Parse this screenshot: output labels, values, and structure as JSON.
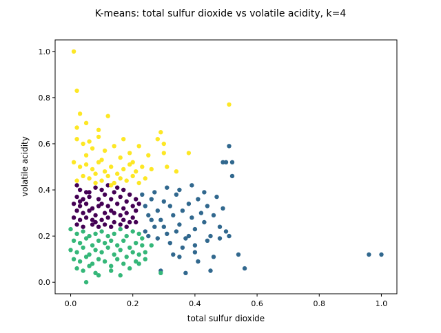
{
  "chart_data": {
    "type": "scatter",
    "title": "K-means: total sulfur dioxide vs volatile acidity, k=4",
    "xlabel": "total sulfur dioxide",
    "ylabel": "volatile acidity",
    "xlim": [
      -0.05,
      1.05
    ],
    "ylim": [
      -0.05,
      1.05
    ],
    "xticks": [
      0.0,
      0.2,
      0.4,
      0.6,
      0.8,
      1.0
    ],
    "xtick_labels": [
      "0.0",
      "0.2",
      "0.4",
      "0.6",
      "0.8",
      "1.0"
    ],
    "yticks": [
      0.0,
      0.2,
      0.4,
      0.6,
      0.8,
      1.0
    ],
    "ytick_labels": [
      "0.0",
      "0.2",
      "0.4",
      "0.6",
      "0.8",
      "1.0"
    ],
    "grid": false,
    "legend": "none",
    "series": [
      {
        "color": "#440154",
        "points": [
          [
            0.02,
            0.42
          ],
          [
            0.03,
            0.4
          ],
          [
            0.05,
            0.39
          ],
          [
            0.08,
            0.41
          ],
          [
            0.1,
            0.4
          ],
          [
            0.12,
            0.42
          ],
          [
            0.14,
            0.39
          ],
          [
            0.17,
            0.4
          ],
          [
            0.19,
            0.38
          ],
          [
            0.02,
            0.37
          ],
          [
            0.04,
            0.36
          ],
          [
            0.06,
            0.37
          ],
          [
            0.09,
            0.36
          ],
          [
            0.11,
            0.38
          ],
          [
            0.13,
            0.36
          ],
          [
            0.16,
            0.37
          ],
          [
            0.18,
            0.35
          ],
          [
            0.21,
            0.36
          ],
          [
            0.01,
            0.34
          ],
          [
            0.03,
            0.33
          ],
          [
            0.05,
            0.34
          ],
          [
            0.07,
            0.32
          ],
          [
            0.1,
            0.34
          ],
          [
            0.12,
            0.33
          ],
          [
            0.15,
            0.34
          ],
          [
            0.17,
            0.32
          ],
          [
            0.2,
            0.33
          ],
          [
            0.02,
            0.31
          ],
          [
            0.04,
            0.3
          ],
          [
            0.06,
            0.31
          ],
          [
            0.08,
            0.29
          ],
          [
            0.11,
            0.3
          ],
          [
            0.13,
            0.31
          ],
          [
            0.16,
            0.29
          ],
          [
            0.18,
            0.3
          ],
          [
            0.21,
            0.31
          ],
          [
            0.01,
            0.28
          ],
          [
            0.03,
            0.27
          ],
          [
            0.05,
            0.28
          ],
          [
            0.08,
            0.26
          ],
          [
            0.1,
            0.27
          ],
          [
            0.12,
            0.28
          ],
          [
            0.14,
            0.26
          ],
          [
            0.17,
            0.27
          ],
          [
            0.2,
            0.28
          ],
          [
            0.02,
            0.25
          ],
          [
            0.04,
            0.24
          ],
          [
            0.07,
            0.25
          ],
          [
            0.09,
            0.24
          ],
          [
            0.11,
            0.25
          ],
          [
            0.13,
            0.24
          ],
          [
            0.16,
            0.25
          ],
          [
            0.18,
            0.24
          ],
          [
            0.21,
            0.26
          ],
          [
            0.06,
            0.39
          ],
          [
            0.15,
            0.41
          ],
          [
            0.09,
            0.33
          ],
          [
            0.14,
            0.3
          ],
          [
            0.07,
            0.27
          ],
          [
            0.19,
            0.26
          ],
          [
            0.03,
            0.35
          ],
          [
            0.22,
            0.34
          ]
        ]
      },
      {
        "color": "#31688e",
        "points": [
          [
            0.23,
            0.38
          ],
          [
            0.24,
            0.33
          ],
          [
            0.25,
            0.29
          ],
          [
            0.26,
            0.36
          ],
          [
            0.27,
            0.24
          ],
          [
            0.28,
            0.31
          ],
          [
            0.29,
            0.27
          ],
          [
            0.3,
            0.35
          ],
          [
            0.31,
            0.21
          ],
          [
            0.32,
            0.33
          ],
          [
            0.33,
            0.29
          ],
          [
            0.34,
            0.38
          ],
          [
            0.35,
            0.25
          ],
          [
            0.36,
            0.31
          ],
          [
            0.37,
            0.19
          ],
          [
            0.38,
            0.34
          ],
          [
            0.39,
            0.28
          ],
          [
            0.4,
            0.23
          ],
          [
            0.41,
            0.36
          ],
          [
            0.42,
            0.3
          ],
          [
            0.43,
            0.26
          ],
          [
            0.44,
            0.33
          ],
          [
            0.45,
            0.2
          ],
          [
            0.46,
            0.29
          ],
          [
            0.47,
            0.37
          ],
          [
            0.48,
            0.24
          ],
          [
            0.49,
            0.32
          ],
          [
            0.24,
            0.22
          ],
          [
            0.26,
            0.27
          ],
          [
            0.28,
            0.19
          ],
          [
            0.3,
            0.24
          ],
          [
            0.32,
            0.17
          ],
          [
            0.34,
            0.22
          ],
          [
            0.36,
            0.15
          ],
          [
            0.38,
            0.2
          ],
          [
            0.4,
            0.13
          ],
          [
            0.27,
            0.39
          ],
          [
            0.31,
            0.41
          ],
          [
            0.35,
            0.4
          ],
          [
            0.39,
            0.42
          ],
          [
            0.43,
            0.39
          ],
          [
            0.33,
            0.12
          ],
          [
            0.35,
            0.11
          ],
          [
            0.4,
            0.16
          ],
          [
            0.44,
            0.18
          ],
          [
            0.46,
            0.11
          ],
          [
            0.48,
            0.19
          ],
          [
            0.5,
            0.22
          ],
          [
            0.51,
            0.2
          ],
          [
            0.41,
            0.09
          ],
          [
            0.37,
            0.04
          ],
          [
            0.45,
            0.05
          ],
          [
            0.49,
            0.52
          ],
          [
            0.5,
            0.52
          ],
          [
            0.52,
            0.52
          ],
          [
            0.51,
            0.59
          ],
          [
            0.52,
            0.46
          ],
          [
            0.54,
            0.12
          ],
          [
            0.56,
            0.06
          ],
          [
            0.96,
            0.12
          ],
          [
            1.0,
            0.12
          ],
          [
            0.29,
            0.05
          ],
          [
            0.25,
            0.2
          ]
        ]
      },
      {
        "color": "#35b779",
        "points": [
          [
            0.0,
            0.23
          ],
          [
            0.02,
            0.21
          ],
          [
            0.04,
            0.22
          ],
          [
            0.06,
            0.2
          ],
          [
            0.08,
            0.21
          ],
          [
            0.1,
            0.22
          ],
          [
            0.12,
            0.2
          ],
          [
            0.14,
            0.21
          ],
          [
            0.16,
            0.23
          ],
          [
            0.18,
            0.2
          ],
          [
            0.2,
            0.22
          ],
          [
            0.22,
            0.21
          ],
          [
            0.01,
            0.18
          ],
          [
            0.03,
            0.17
          ],
          [
            0.05,
            0.19
          ],
          [
            0.07,
            0.16
          ],
          [
            0.09,
            0.18
          ],
          [
            0.11,
            0.17
          ],
          [
            0.13,
            0.18
          ],
          [
            0.15,
            0.16
          ],
          [
            0.17,
            0.18
          ],
          [
            0.19,
            0.15
          ],
          [
            0.21,
            0.17
          ],
          [
            0.23,
            0.16
          ],
          [
            0.0,
            0.14
          ],
          [
            0.02,
            0.13
          ],
          [
            0.04,
            0.15
          ],
          [
            0.06,
            0.12
          ],
          [
            0.08,
            0.14
          ],
          [
            0.1,
            0.13
          ],
          [
            0.12,
            0.15
          ],
          [
            0.14,
            0.12
          ],
          [
            0.16,
            0.14
          ],
          [
            0.18,
            0.11
          ],
          [
            0.2,
            0.13
          ],
          [
            0.22,
            0.12
          ],
          [
            0.01,
            0.1
          ],
          [
            0.03,
            0.09
          ],
          [
            0.05,
            0.11
          ],
          [
            0.07,
            0.08
          ],
          [
            0.09,
            0.1
          ],
          [
            0.11,
            0.09
          ],
          [
            0.13,
            0.07
          ],
          [
            0.15,
            0.1
          ],
          [
            0.17,
            0.08
          ],
          [
            0.19,
            0.06
          ],
          [
            0.21,
            0.09
          ],
          [
            0.02,
            0.06
          ],
          [
            0.04,
            0.05
          ],
          [
            0.06,
            0.07
          ],
          [
            0.08,
            0.04
          ],
          [
            0.05,
            0.0
          ],
          [
            0.09,
            0.03
          ],
          [
            0.16,
            0.03
          ],
          [
            0.13,
            0.05
          ],
          [
            0.24,
            0.13
          ],
          [
            0.24,
            0.1
          ],
          [
            0.22,
            0.08
          ],
          [
            0.29,
            0.04
          ],
          [
            0.26,
            0.16
          ],
          [
            0.23,
            0.19
          ]
        ]
      },
      {
        "color": "#fde725",
        "points": [
          [
            0.01,
            1.0
          ],
          [
            0.02,
            0.83
          ],
          [
            0.03,
            0.73
          ],
          [
            0.05,
            0.69
          ],
          [
            0.02,
            0.67
          ],
          [
            0.12,
            0.72
          ],
          [
            0.09,
            0.66
          ],
          [
            0.51,
            0.77
          ],
          [
            0.02,
            0.62
          ],
          [
            0.04,
            0.6
          ],
          [
            0.06,
            0.61
          ],
          [
            0.07,
            0.58
          ],
          [
            0.09,
            0.63
          ],
          [
            0.11,
            0.57
          ],
          [
            0.14,
            0.59
          ],
          [
            0.17,
            0.62
          ],
          [
            0.19,
            0.56
          ],
          [
            0.22,
            0.59
          ],
          [
            0.28,
            0.62
          ],
          [
            0.29,
            0.65
          ],
          [
            0.3,
            0.6
          ],
          [
            0.3,
            0.56
          ],
          [
            0.38,
            0.56
          ],
          [
            0.05,
            0.55
          ],
          [
            0.1,
            0.53
          ],
          [
            0.16,
            0.54
          ],
          [
            0.2,
            0.52
          ],
          [
            0.25,
            0.55
          ],
          [
            0.01,
            0.52
          ],
          [
            0.03,
            0.5
          ],
          [
            0.05,
            0.51
          ],
          [
            0.07,
            0.49
          ],
          [
            0.09,
            0.52
          ],
          [
            0.11,
            0.48
          ],
          [
            0.13,
            0.5
          ],
          [
            0.15,
            0.47
          ],
          [
            0.17,
            0.49
          ],
          [
            0.19,
            0.51
          ],
          [
            0.21,
            0.48
          ],
          [
            0.23,
            0.5
          ],
          [
            0.26,
            0.49
          ],
          [
            0.31,
            0.5
          ],
          [
            0.34,
            0.48
          ],
          [
            0.04,
            0.46
          ],
          [
            0.06,
            0.45
          ],
          [
            0.08,
            0.47
          ],
          [
            0.1,
            0.44
          ],
          [
            0.12,
            0.46
          ],
          [
            0.14,
            0.43
          ],
          [
            0.16,
            0.45
          ],
          [
            0.18,
            0.44
          ],
          [
            0.2,
            0.46
          ],
          [
            0.22,
            0.43
          ],
          [
            0.02,
            0.44
          ],
          [
            0.24,
            0.45
          ],
          [
            0.08,
            0.43
          ],
          [
            0.13,
            0.42
          ]
        ]
      }
    ]
  }
}
